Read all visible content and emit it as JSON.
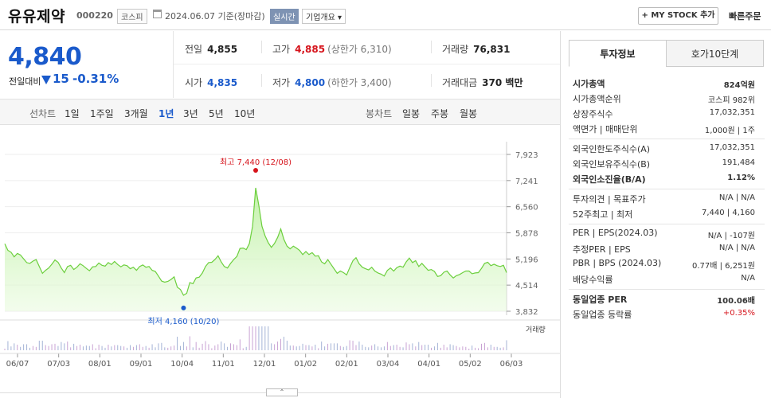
{
  "header": {
    "stock_name": "유유제약",
    "stock_code": "000220",
    "market_badge": "코스피",
    "date_text": "2024.06.07 기준(장마감)",
    "realtime_badge": "실시간",
    "corp_info_label": "기업개요 ▾",
    "mystock_button": "+ MY STOCK 추가",
    "quick_order": "빠른주문"
  },
  "price": {
    "current": "4,840",
    "compare_label": "전일대비",
    "change": "15",
    "change_pct": "-0.31%"
  },
  "quote": {
    "prev_close_label": "전일",
    "prev_close": "4,855",
    "high_label": "고가",
    "high": "4,885",
    "high_limit": "(상한가 6,310)",
    "volume_label": "거래량",
    "volume": "76,831",
    "open_label": "시가",
    "open": "4,835",
    "low_label": "저가",
    "low": "4,800",
    "low_limit": "(하한가 3,400)",
    "amount_label": "거래대금",
    "amount": "370 백만"
  },
  "toolbar": {
    "line_chart_label": "선차트",
    "periods": [
      "1일",
      "1주일",
      "3개월",
      "1년",
      "3년",
      "5년",
      "10년"
    ],
    "active_period": "1년",
    "candle_label": "봉차트",
    "candle_periods": [
      "일봉",
      "주봉",
      "월봉"
    ]
  },
  "chart_data": {
    "type": "area",
    "y_ticks": [
      "7,923",
      "7,241",
      "6,560",
      "5,878",
      "5,196",
      "4,514",
      "3,832"
    ],
    "ylim": [
      3832,
      7923
    ],
    "x_ticks": [
      "06/07",
      "07/03",
      "08/01",
      "09/01",
      "10/04",
      "11/01",
      "12/01",
      "01/02",
      "02/01",
      "03/04",
      "04/01",
      "05/02",
      "06/03"
    ],
    "max_annotation": "최고 7,440 (12/08)",
    "min_annotation": "최저 4,160 (10/20)",
    "volume_legend": "거래량",
    "series": [
      {
        "values": [
          5590,
          5420,
          5370,
          5250,
          5340,
          5300,
          5200,
          5100,
          5080,
          5140,
          5180,
          5000,
          4820,
          4900,
          4960,
          5060,
          5170,
          5110,
          4960,
          4840,
          5000,
          5030,
          4920,
          4980,
          5070,
          5020,
          4950,
          4890,
          4990,
          5000,
          5090,
          5030,
          5010,
          5100,
          5050,
          5130,
          5050,
          4990,
          5040,
          5020,
          4940,
          4980,
          4900,
          5000,
          5040,
          4980,
          5000,
          4900,
          4870,
          4750,
          4620,
          4590,
          4610,
          4660,
          4730,
          4460,
          4400,
          4250,
          4300,
          4580,
          4550,
          4700,
          4720,
          4830,
          5000,
          5100,
          5110,
          5180,
          5280,
          5120,
          5000,
          4960,
          5080,
          5180,
          5260,
          5470,
          5480,
          5440,
          5600,
          6050,
          7050,
          6600,
          6050,
          5800,
          5620,
          5500,
          5600,
          5760,
          5980,
          5710,
          5530,
          5460,
          5530,
          5480,
          5420,
          5310,
          5390,
          5310,
          5360,
          5270,
          5280,
          5120,
          5070,
          5180,
          5060,
          4940,
          4820,
          4880,
          4840,
          4780,
          4970,
          5150,
          5230,
          5070,
          4980,
          4940,
          4910,
          4980,
          4880,
          4830,
          4800,
          4750,
          4900,
          4960,
          4880,
          4970,
          5010,
          4980,
          5120,
          5220,
          5100,
          5150,
          5000,
          5080,
          4990,
          4900,
          4920,
          4870,
          4740,
          4760,
          4850,
          4880,
          4780,
          4700,
          4760,
          4790,
          4840,
          4880,
          4880,
          4810,
          4830,
          4840,
          4950,
          5080,
          5110,
          5020,
          5060,
          5020,
          5000,
          5030,
          4840
        ]
      }
    ]
  },
  "side": {
    "tab_invest": "투자정보",
    "tab_hoga": "호가10단계",
    "rows": [
      {
        "k": "시가총액",
        "v": "824억원",
        "bold": true
      },
      {
        "k": "시가총액순위",
        "v": "코스피 982위"
      },
      {
        "k": "상장주식수",
        "v": "17,032,351"
      },
      {
        "k": "액면가 | 매매단위",
        "v": "1,000원 | 1주"
      },
      {
        "k": "외국인한도주식수(A)",
        "v": "17,032,351"
      },
      {
        "k": "외국인보유주식수(B)",
        "v": "191,484"
      },
      {
        "k": "외국인소진율(B/A)",
        "v": "1.12%",
        "bold": true
      },
      {
        "k": "투자의견 | 목표주가",
        "v": "N/A | N/A"
      },
      {
        "k": "52주최고 | 최저",
        "v": "7,440 | 4,160"
      },
      {
        "k": "PER | EPS(2024.03)",
        "v": "N/A | -107원"
      },
      {
        "k": "추정PER | EPS",
        "v": "N/A | N/A"
      },
      {
        "k": "PBR | BPS (2024.03)",
        "v": "0.77배 | 6,251원"
      },
      {
        "k": "배당수익률",
        "v": "N/A"
      },
      {
        "k": "동일업종 PER",
        "v": "100.06배",
        "bold": true
      },
      {
        "k": "동일업종 등락률",
        "v": "+0.35%"
      }
    ]
  }
}
